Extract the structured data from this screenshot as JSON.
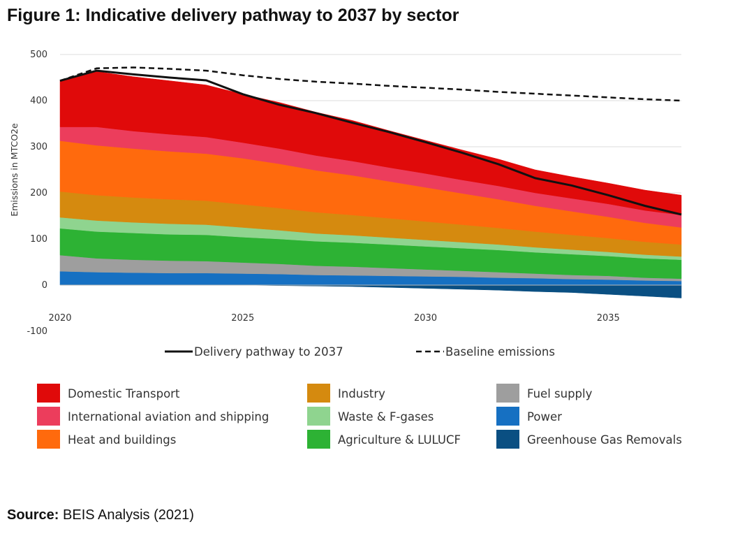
{
  "figure": {
    "title": "Figure 1: Indicative delivery pathway to 2037 by sector",
    "source_label": "Source:",
    "source_text": " BEIS Analysis (2021)"
  },
  "chart_data": {
    "type": "area",
    "title": "Figure 1: Indicative delivery pathway to 2037 by sector",
    "ylabel": "Emissions in MTCO2e",
    "xlabel": "",
    "ylim": [
      -100,
      500
    ],
    "yticks": [
      -100,
      0,
      100,
      200,
      300,
      400,
      500
    ],
    "xticks": [
      2020,
      2025,
      2030,
      2035
    ],
    "grid": true,
    "x": [
      2020,
      2021,
      2022,
      2023,
      2024,
      2025,
      2026,
      2027,
      2028,
      2029,
      2030,
      2031,
      2032,
      2033,
      2034,
      2035,
      2036,
      2037
    ],
    "series": [
      {
        "name": "Greenhouse Gas Removals",
        "color": "#0a4f82",
        "values": [
          0,
          0,
          0,
          0,
          0,
          0,
          -1,
          -2,
          -3,
          -5,
          -7,
          -9,
          -11,
          -14,
          -16,
          -20,
          -24,
          -28
        ]
      },
      {
        "name": "Power",
        "color": "#1670c2",
        "values": [
          30,
          28,
          27,
          26,
          26,
          25,
          24,
          22,
          21,
          20,
          19,
          18,
          16,
          15,
          13,
          12,
          10,
          9
        ]
      },
      {
        "name": "Fuel supply",
        "color": "#9e9e9e",
        "values": [
          35,
          30,
          28,
          27,
          26,
          24,
          22,
          20,
          19,
          17,
          15,
          13,
          12,
          10,
          9,
          8,
          6,
          5
        ]
      },
      {
        "name": "Agriculture & LULUCF",
        "color": "#2db234",
        "values": [
          58,
          58,
          58,
          57,
          57,
          55,
          54,
          53,
          52,
          51,
          50,
          49,
          48,
          46,
          45,
          43,
          42,
          41
        ]
      },
      {
        "name": "Waste & F-gases",
        "color": "#8fd48f",
        "values": [
          24,
          24,
          23,
          23,
          22,
          21,
          19,
          17,
          16,
          15,
          14,
          13,
          12,
          11,
          10,
          9,
          8,
          7
        ]
      },
      {
        "name": "Industry",
        "color": "#d58a0f",
        "values": [
          56,
          55,
          54,
          53,
          52,
          50,
          48,
          46,
          44,
          42,
          40,
          38,
          36,
          34,
          32,
          30,
          28,
          26
        ]
      },
      {
        "name": "Heat and buildings",
        "color": "#ff6a0d",
        "values": [
          110,
          108,
          106,
          104,
          102,
          100,
          96,
          91,
          86,
          80,
          74,
          68,
          62,
          56,
          51,
          46,
          41,
          37
        ]
      },
      {
        "name": "International aviation and shipping",
        "color": "#ec3d5c",
        "values": [
          30,
          40,
          38,
          37,
          36,
          34,
          33,
          32,
          31,
          30,
          30,
          29,
          29,
          28,
          28,
          28,
          27,
          27
        ]
      },
      {
        "name": "Domestic Transport",
        "color": "#e00a0a",
        "values": [
          100,
          120,
          118,
          116,
          113,
          105,
          100,
          94,
          88,
          80,
          72,
          65,
          58,
          50,
          47,
          45,
          44,
          43
        ]
      }
    ],
    "lines": [
      {
        "name": "Delivery pathway to 2037",
        "style": "solid",
        "values": [
          443,
          465,
          457,
          450,
          444,
          414,
          391,
          373,
          352,
          332,
          310,
          287,
          262,
          232,
          216,
          195,
          172,
          153
        ]
      },
      {
        "name": "Baseline emissions",
        "style": "dashed",
        "values": [
          443,
          470,
          472,
          469,
          465,
          455,
          447,
          441,
          437,
          432,
          428,
          424,
          419,
          415,
          411,
          407,
          403,
          400
        ]
      }
    ],
    "legend_lines": [
      "Delivery pathway to 2037",
      "Baseline emissions"
    ],
    "legend_order": [
      "Domestic Transport",
      "International aviation and shipping",
      "Heat and buildings",
      "Industry",
      "Waste & F-gases",
      "Agriculture & LULUCF",
      "Fuel supply",
      "Power",
      "Greenhouse Gas Removals"
    ],
    "legend_placement": "bottom"
  }
}
